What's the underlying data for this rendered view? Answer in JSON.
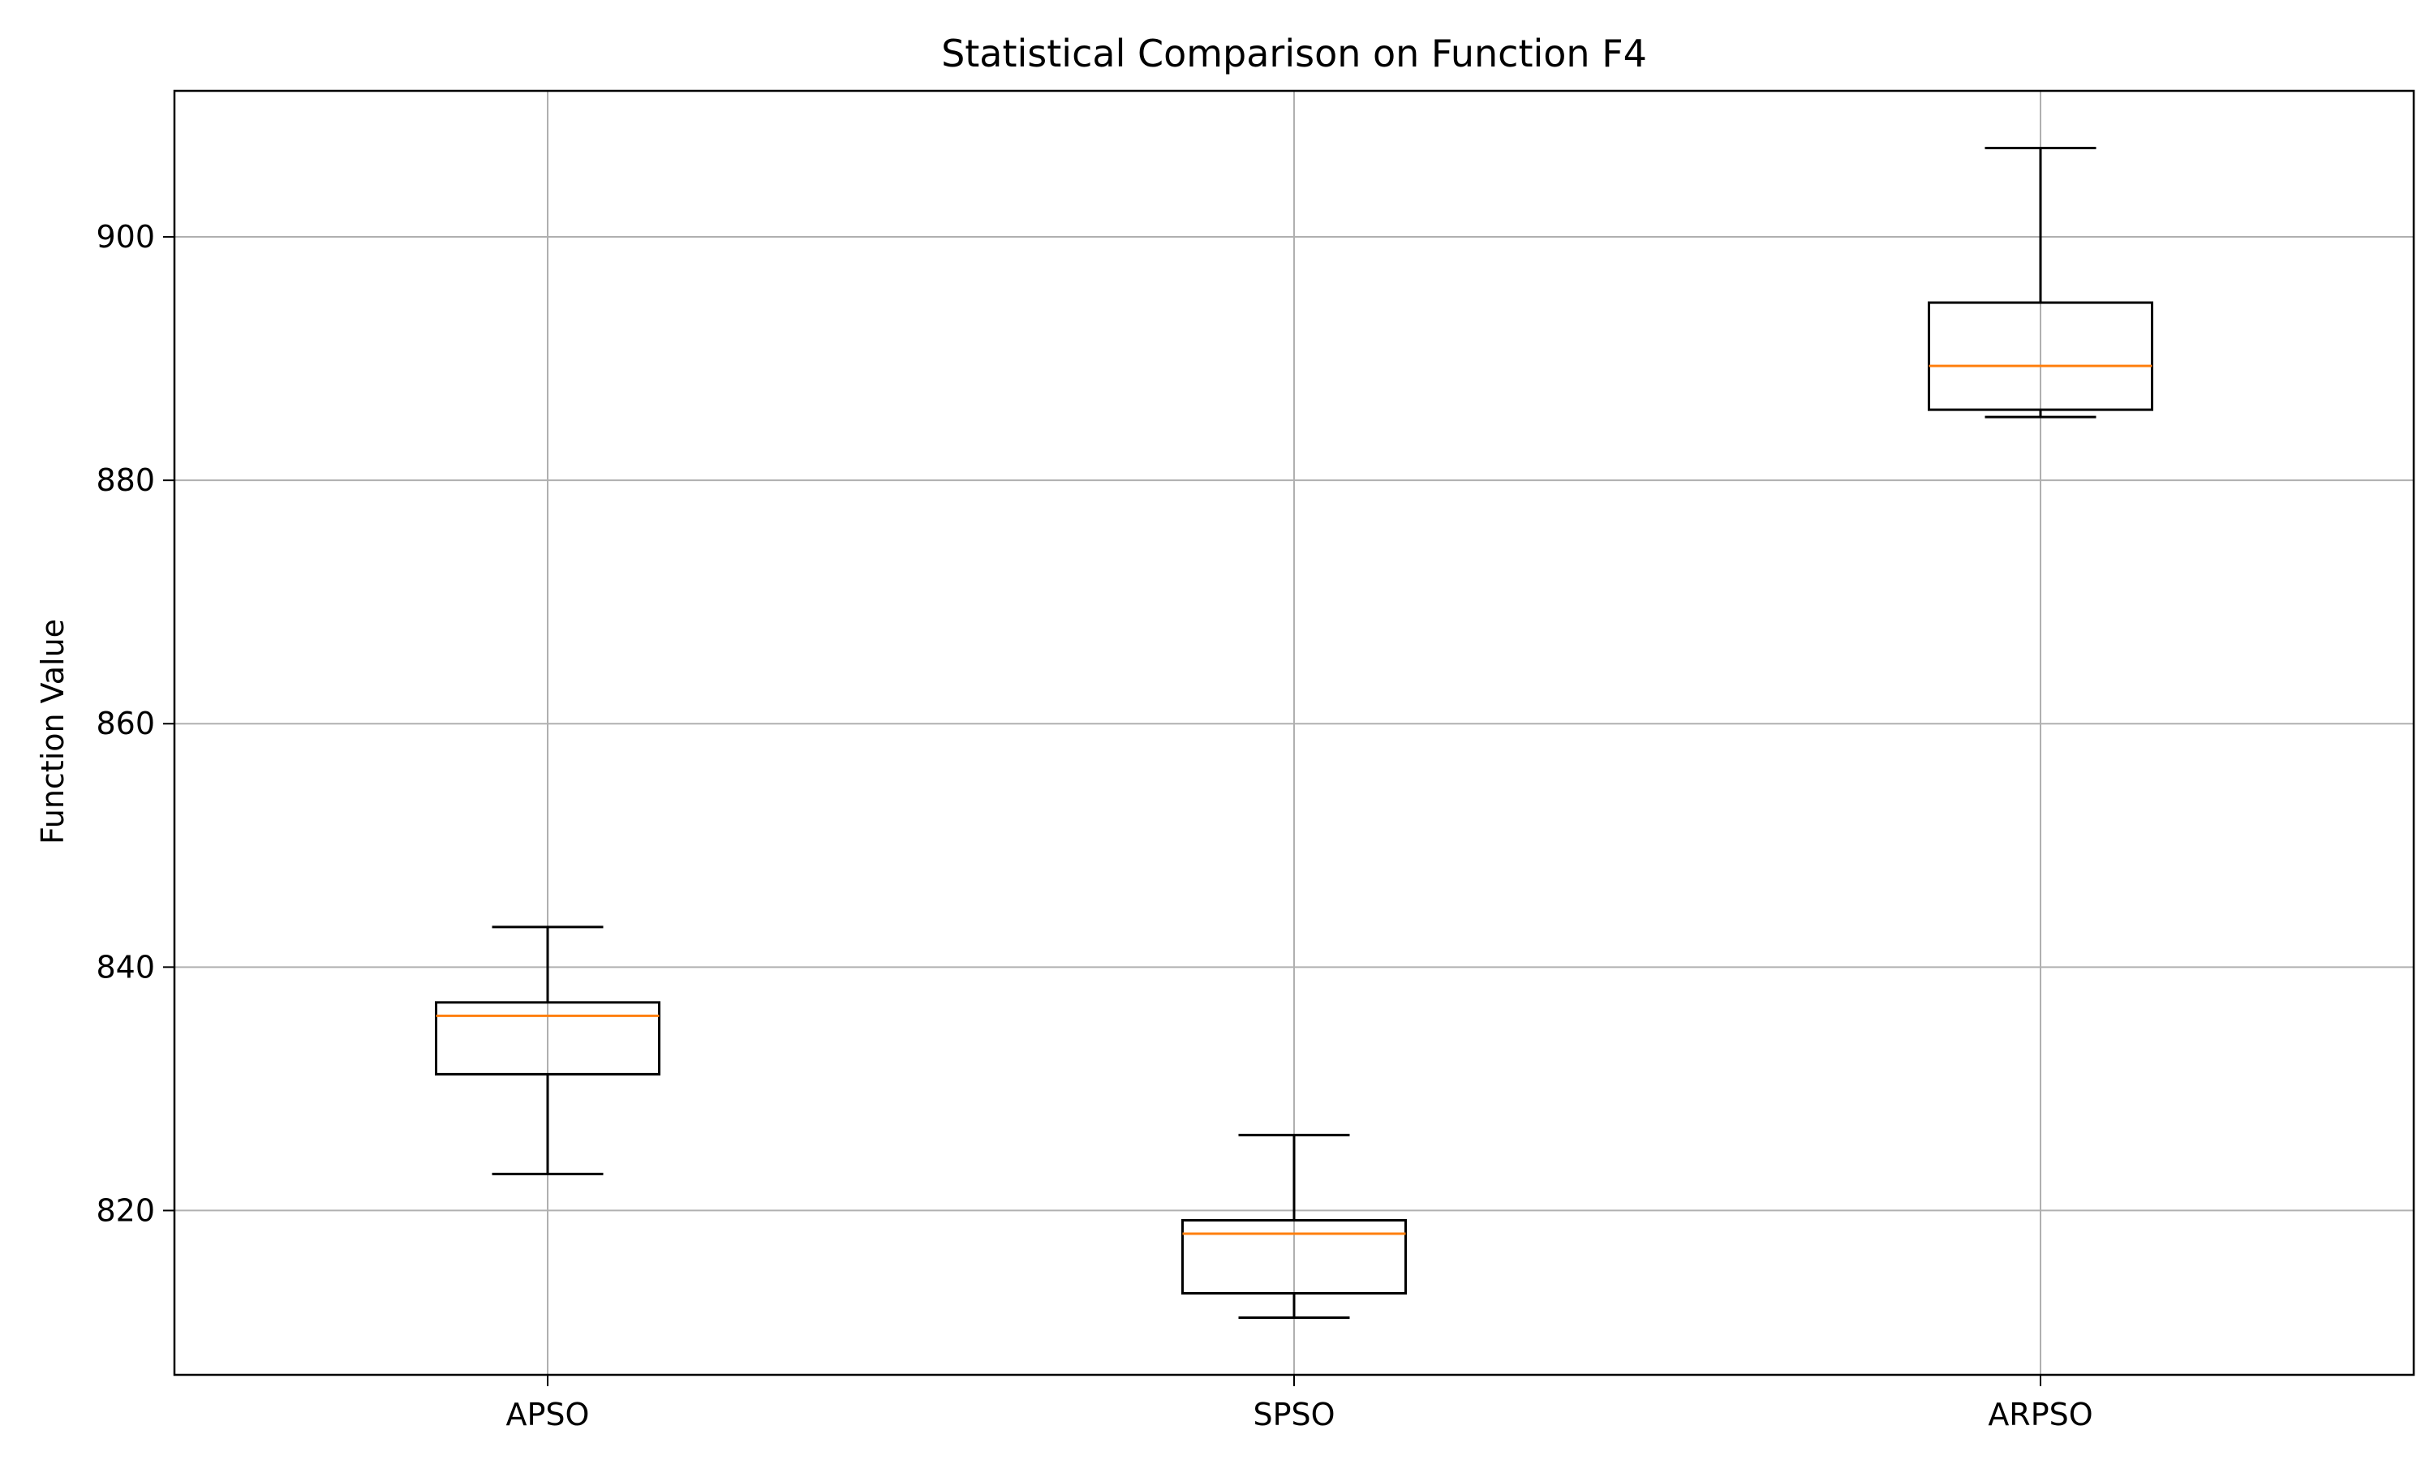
{
  "chart_data": {
    "type": "box",
    "title": "Statistical Comparison on Function F4",
    "xlabel": "",
    "ylabel": "Function Value",
    "ylim": [
      806.5,
      912
    ],
    "yticks": [
      820,
      840,
      860,
      880,
      900
    ],
    "grid": true,
    "categories": [
      "APSO",
      "SPSO",
      "ARPSO"
    ],
    "boxes": [
      {
        "whisker_low": 823,
        "q1": 831.2,
        "median": 836,
        "q3": 837.1,
        "whisker_high": 843.3
      },
      {
        "whisker_low": 811.2,
        "q1": 813.2,
        "median": 818.1,
        "q3": 819.2,
        "whisker_high": 826.2
      },
      {
        "whisker_low": 885.2,
        "q1": 885.8,
        "median": 889.4,
        "q3": 894.6,
        "whisker_high": 907.3
      }
    ],
    "colors": {
      "box": "#000000",
      "median": "#ff7f0e",
      "grid": "#b0b0b0"
    }
  }
}
